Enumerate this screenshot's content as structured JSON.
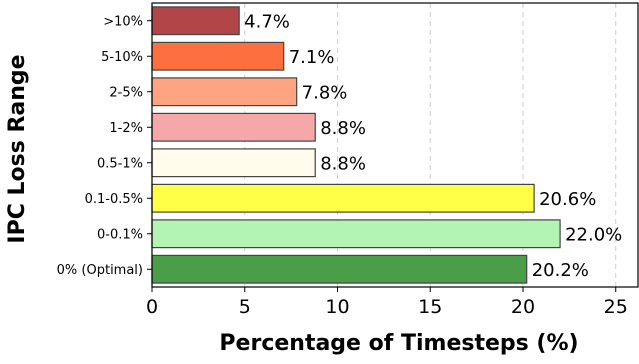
{
  "chart_data": {
    "type": "bar",
    "orientation": "horizontal",
    "categories": [
      "0% (Optimal)",
      "0-0.1%",
      "0.1-0.5%",
      "0.5-1%",
      "1-2%",
      "2-5%",
      "5-10%",
      ">10%"
    ],
    "values": [
      20.2,
      22.0,
      20.6,
      8.8,
      8.8,
      7.8,
      7.1,
      4.7
    ],
    "value_labels": [
      "20.2%",
      "22.0%",
      "20.6%",
      "8.8%",
      "8.8%",
      "7.8%",
      "7.1%",
      "4.7%"
    ],
    "colors": [
      "#4a9e47",
      "#b3f4b3",
      "#ffff48",
      "#fffceb",
      "#f6a7a8",
      "#fea481",
      "#fe6f3f",
      "#b24547"
    ],
    "xlabel": "Percentage of Timesteps (%)",
    "ylabel": "IPC Loss Range",
    "xlim": [
      0,
      26.2
    ],
    "x_ticks": [
      0,
      5,
      10,
      15,
      20,
      25
    ],
    "x_tick_labels": [
      "0",
      "5",
      "10",
      "15",
      "20",
      "25"
    ],
    "grid": "x-dashed",
    "legend": "none"
  }
}
